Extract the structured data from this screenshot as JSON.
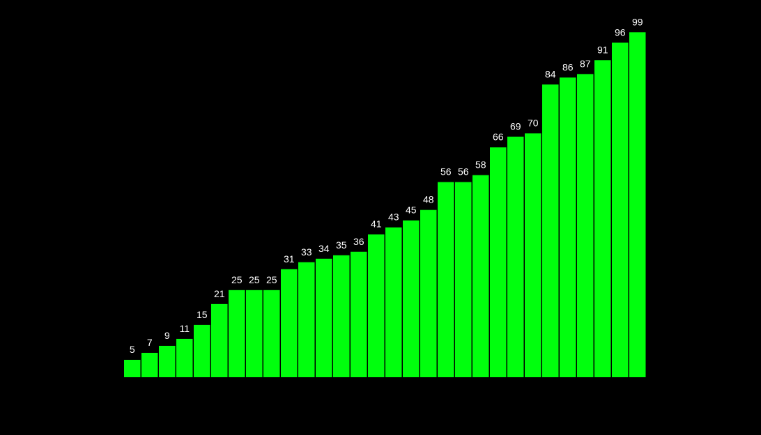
{
  "chart_data": {
    "type": "bar",
    "values": [
      5,
      7,
      9,
      11,
      15,
      21,
      25,
      25,
      25,
      31,
      33,
      34,
      35,
      36,
      41,
      43,
      45,
      48,
      56,
      56,
      58,
      66,
      69,
      70,
      84,
      86,
      87,
      91,
      96,
      99
    ],
    "ylim": [
      0,
      100
    ],
    "grid": false,
    "bar_color": "#00ff0d",
    "label_color": "#ffffff",
    "background": "#000000"
  }
}
